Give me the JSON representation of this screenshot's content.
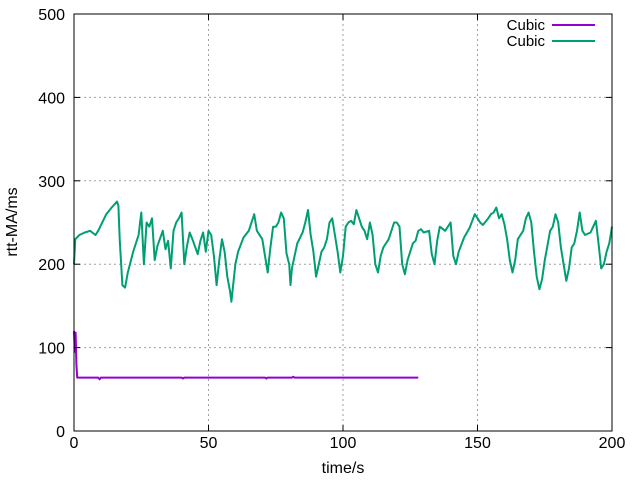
{
  "chart_data": {
    "type": "line",
    "title": "",
    "xlabel": "time/s",
    "ylabel": "rtt-MA/ms",
    "xlim": [
      0,
      200
    ],
    "ylim": [
      0,
      500
    ],
    "xticks": [
      0,
      50,
      100,
      150,
      200
    ],
    "yticks": [
      0,
      100,
      200,
      300,
      400,
      500
    ],
    "xtick_labels": [
      "0",
      "50",
      "100",
      "150",
      "200"
    ],
    "ytick_labels": [
      "0",
      "100",
      "200",
      "300",
      "400",
      "500"
    ],
    "grid": true,
    "legend_position": "top-right",
    "series": [
      {
        "name": "Cubic",
        "color": "#9400d3",
        "points": [
          [
            0,
            120
          ],
          [
            0.3,
            95
          ],
          [
            0.6,
            118
          ],
          [
            0.9,
            80
          ],
          [
            1.2,
            64
          ],
          [
            3,
            64
          ],
          [
            9,
            64
          ],
          [
            9.5,
            62
          ],
          [
            10,
            64
          ],
          [
            40,
            64
          ],
          [
            40.5,
            63
          ],
          [
            41,
            64
          ],
          [
            71,
            64
          ],
          [
            71.5,
            63
          ],
          [
            72,
            64
          ],
          [
            81,
            64
          ],
          [
            81.5,
            65
          ],
          [
            82,
            64
          ],
          [
            128,
            64
          ]
        ]
      },
      {
        "name": "Cubic",
        "color": "#009e73",
        "points": [
          [
            0,
            200
          ],
          [
            0.5,
            230
          ],
          [
            2,
            235
          ],
          [
            4,
            238
          ],
          [
            6,
            240
          ],
          [
            8,
            235
          ],
          [
            9,
            240
          ],
          [
            12,
            260
          ],
          [
            14,
            268
          ],
          [
            16,
            275
          ],
          [
            16.5,
            270
          ],
          [
            17,
            230
          ],
          [
            18,
            175
          ],
          [
            19,
            172
          ],
          [
            20,
            190
          ],
          [
            22,
            215
          ],
          [
            24,
            235
          ],
          [
            25,
            262
          ],
          [
            26,
            200
          ],
          [
            27,
            250
          ],
          [
            28,
            245
          ],
          [
            29,
            255
          ],
          [
            30,
            205
          ],
          [
            31,
            222
          ],
          [
            33,
            240
          ],
          [
            34,
            218
          ],
          [
            35,
            228
          ],
          [
            36,
            195
          ],
          [
            37,
            240
          ],
          [
            38,
            250
          ],
          [
            39,
            255
          ],
          [
            40,
            262
          ],
          [
            41,
            200
          ],
          [
            42,
            222
          ],
          [
            43,
            238
          ],
          [
            44,
            230
          ],
          [
            46,
            212
          ],
          [
            47,
            228
          ],
          [
            48,
            238
          ],
          [
            49,
            215
          ],
          [
            50,
            240
          ],
          [
            51,
            235
          ],
          [
            52,
            210
          ],
          [
            53,
            175
          ],
          [
            54,
            205
          ],
          [
            55,
            230
          ],
          [
            56,
            215
          ],
          [
            57,
            185
          ],
          [
            58,
            168
          ],
          [
            58.5,
            155
          ],
          [
            59,
            170
          ],
          [
            60,
            200
          ],
          [
            61,
            215
          ],
          [
            63,
            232
          ],
          [
            65,
            240
          ],
          [
            67,
            260
          ],
          [
            68,
            240
          ],
          [
            70,
            230
          ],
          [
            71,
            210
          ],
          [
            72,
            190
          ],
          [
            73,
            220
          ],
          [
            74,
            245
          ],
          [
            75,
            245
          ],
          [
            76,
            250
          ],
          [
            77,
            262
          ],
          [
            78,
            255
          ],
          [
            79,
            213
          ],
          [
            80,
            200
          ],
          [
            80.5,
            175
          ],
          [
            81,
            195
          ],
          [
            83,
            225
          ],
          [
            85,
            238
          ],
          [
            86,
            250
          ],
          [
            87,
            265
          ],
          [
            88,
            235
          ],
          [
            89,
            215
          ],
          [
            90,
            185
          ],
          [
            91,
            200
          ],
          [
            92,
            215
          ],
          [
            93,
            220
          ],
          [
            94,
            230
          ],
          [
            95,
            250
          ],
          [
            96,
            255
          ],
          [
            97,
            235
          ],
          [
            98,
            215
          ],
          [
            99,
            190
          ],
          [
            100,
            210
          ],
          [
            101,
            245
          ],
          [
            102,
            250
          ],
          [
            103,
            252
          ],
          [
            104,
            248
          ],
          [
            105,
            265
          ],
          [
            106,
            255
          ],
          [
            107,
            245
          ],
          [
            108,
            240
          ],
          [
            109,
            230
          ],
          [
            110,
            250
          ],
          [
            111,
            235
          ],
          [
            112,
            200
          ],
          [
            113,
            190
          ],
          [
            114,
            210
          ],
          [
            115,
            220
          ],
          [
            117,
            230
          ],
          [
            119,
            250
          ],
          [
            120,
            250
          ],
          [
            121,
            245
          ],
          [
            122,
            200
          ],
          [
            123,
            188
          ],
          [
            124,
            205
          ],
          [
            126,
            225
          ],
          [
            127,
            228
          ],
          [
            128,
            240
          ],
          [
            129,
            242
          ],
          [
            130,
            238
          ],
          [
            132,
            240
          ],
          [
            133,
            212
          ],
          [
            134,
            200
          ],
          [
            135,
            228
          ],
          [
            136,
            245
          ],
          [
            138,
            240
          ],
          [
            140,
            250
          ],
          [
            141,
            210
          ],
          [
            142,
            200
          ],
          [
            143,
            215
          ],
          [
            145,
            232
          ],
          [
            147,
            243
          ],
          [
            149,
            260
          ],
          [
            150,
            255
          ],
          [
            151,
            250
          ],
          [
            152,
            247
          ],
          [
            154,
            255
          ],
          [
            155,
            260
          ],
          [
            156,
            262
          ],
          [
            157,
            268
          ],
          [
            158,
            255
          ],
          [
            159,
            260
          ],
          [
            160,
            248
          ],
          [
            161,
            230
          ],
          [
            162,
            205
          ],
          [
            163,
            190
          ],
          [
            164,
            205
          ],
          [
            165,
            230
          ],
          [
            167,
            240
          ],
          [
            168,
            255
          ],
          [
            169,
            262
          ],
          [
            170,
            250
          ],
          [
            171,
            215
          ],
          [
            172,
            185
          ],
          [
            173,
            170
          ],
          [
            174,
            182
          ],
          [
            175,
            205
          ],
          [
            176,
            222
          ],
          [
            177,
            240
          ],
          [
            178,
            245
          ],
          [
            179,
            260
          ],
          [
            180,
            250
          ],
          [
            181,
            220
          ],
          [
            182,
            200
          ],
          [
            183,
            180
          ],
          [
            184,
            195
          ],
          [
            185,
            220
          ],
          [
            186,
            225
          ],
          [
            187,
            240
          ],
          [
            188,
            262
          ],
          [
            189,
            240
          ],
          [
            190,
            235
          ],
          [
            192,
            238
          ],
          [
            193,
            245
          ],
          [
            194,
            252
          ],
          [
            195,
            225
          ],
          [
            196,
            195
          ],
          [
            197,
            200
          ],
          [
            198,
            215
          ],
          [
            199,
            225
          ],
          [
            200,
            245
          ]
        ]
      }
    ]
  }
}
